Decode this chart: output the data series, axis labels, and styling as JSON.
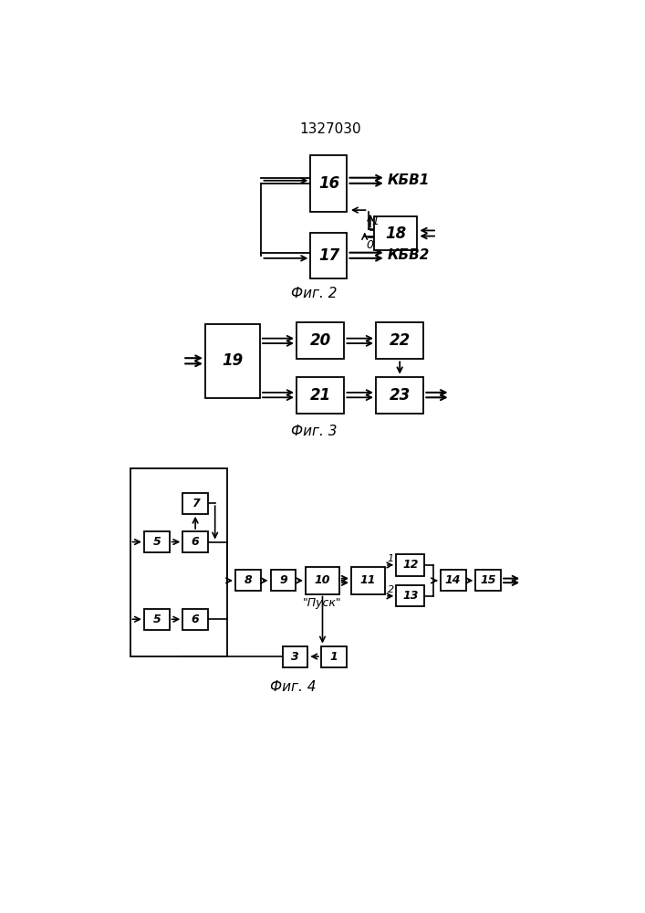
{
  "title": "1327030",
  "fig2_label": "Фиг. 2",
  "fig3_label": "Фиг. 3",
  "fig4_label": "Фиг. 4",
  "bg_color": "#ffffff",
  "box_color": "#ffffff",
  "line_color": "#000000",
  "text_color": "#000000"
}
